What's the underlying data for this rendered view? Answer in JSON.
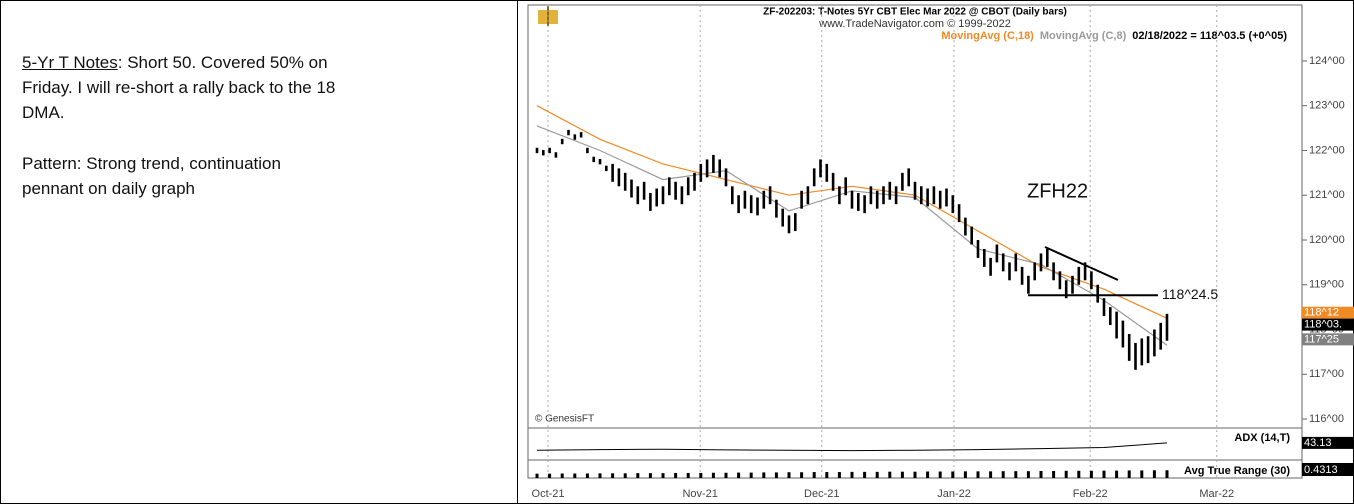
{
  "note_panel": {
    "heading": "5-Yr T Notes",
    "text": ": Short 50. Covered 50% on Friday. I will re-short a rally back to the 18 DMA.",
    "pattern": "Pattern: Strong trend, continuation pennant on daily graph"
  },
  "chart_data": {
    "type": "ohlc",
    "title": "ZF-202203: T-Notes 5Yr CBT Elec Mar 2022 @ CBOT  (Daily bars)",
    "subtitle": "www.TradeNavigator.com © 1999-2022",
    "status": "02/18/2022 = 118^03.5 (+0^05)",
    "credit": "© GenesisFT",
    "annotation": "ZFH22",
    "ylim": [
      115.8,
      125.25
    ],
    "yticks": [
      {
        "value": 124,
        "label": "124^00"
      },
      {
        "value": 123,
        "label": "123^00"
      },
      {
        "value": 122,
        "label": "122^00"
      },
      {
        "value": 121,
        "label": "121^00"
      },
      {
        "value": 120,
        "label": "120^00"
      },
      {
        "value": 119,
        "label": "119^00"
      },
      {
        "value": 118,
        "label": "118^00"
      },
      {
        "value": 117,
        "label": "117^00"
      },
      {
        "value": 116,
        "label": "116^00"
      }
    ],
    "xlim": [
      -1.43,
      121.43
    ],
    "xticks": [
      {
        "value": 1.75,
        "label": "Oct-21"
      },
      {
        "value": 25.9,
        "label": "Nov-21"
      },
      {
        "value": 45.2,
        "label": "Dec-21"
      },
      {
        "value": 66.2,
        "label": "Jan-22"
      },
      {
        "value": 87.8,
        "label": "Feb-22"
      },
      {
        "value": 107.9,
        "label": "Mar-22"
      }
    ],
    "grid": true,
    "bar_color": "#000000",
    "high": [
      122.06,
      122.01,
      122.06,
      121.96,
      122.26,
      122.46,
      122.36,
      122.41,
      122.06,
      121.86,
      121.81,
      121.66,
      121.7,
      121.6,
      121.5,
      121.35,
      121.2,
      121.3,
      121.05,
      121.15,
      121.2,
      121.4,
      121.3,
      121.2,
      121.4,
      121.5,
      121.7,
      121.8,
      121.9,
      121.8,
      121.6,
      121.2,
      121.0,
      121.1,
      121.0,
      120.95,
      121.1,
      121.2,
      120.9,
      120.7,
      120.55,
      120.6,
      121.1,
      121.2,
      121.6,
      121.8,
      121.7,
      121.5,
      121.2,
      121.4,
      121.1,
      121.05,
      121.0,
      121.2,
      121.1,
      121.2,
      121.3,
      121.2,
      121.5,
      121.6,
      121.3,
      121.2,
      121.15,
      121.2,
      121.1,
      121.15,
      121.0,
      120.8,
      120.5,
      120.3,
      120.0,
      119.8,
      119.6,
      119.9,
      119.7,
      119.5,
      119.7,
      119.4,
      119.2,
      119.5,
      119.7,
      119.8,
      119.5,
      119.3,
      119.1,
      119.2,
      119.4,
      119.5,
      119.3,
      119.0,
      118.7,
      118.5,
      118.4,
      118.2,
      117.9,
      117.7,
      117.8,
      117.85,
      118.0,
      118.15,
      118.35
    ],
    "low": [
      121.94,
      121.89,
      121.94,
      121.84,
      122.14,
      122.34,
      122.24,
      122.29,
      121.94,
      121.74,
      121.69,
      121.54,
      121.3,
      121.2,
      121.1,
      120.95,
      120.8,
      120.9,
      120.65,
      120.75,
      120.8,
      121.0,
      120.9,
      120.8,
      121.0,
      121.1,
      121.3,
      121.4,
      121.5,
      121.4,
      121.2,
      120.8,
      120.6,
      120.7,
      120.6,
      120.55,
      120.7,
      120.8,
      120.5,
      120.3,
      120.15,
      120.2,
      120.7,
      120.8,
      121.2,
      121.4,
      121.3,
      121.1,
      120.8,
      121.0,
      120.7,
      120.65,
      120.6,
      120.8,
      120.7,
      120.8,
      120.9,
      120.8,
      121.1,
      121.2,
      120.9,
      120.8,
      120.75,
      120.8,
      120.7,
      120.75,
      120.6,
      120.4,
      120.1,
      119.9,
      119.6,
      119.4,
      119.2,
      119.5,
      119.3,
      119.1,
      119.3,
      119.0,
      118.8,
      119.1,
      119.3,
      119.4,
      119.1,
      118.9,
      118.7,
      118.8,
      119.0,
      119.1,
      118.9,
      118.6,
      118.3,
      118.1,
      117.8,
      117.6,
      117.3,
      117.1,
      117.2,
      117.25,
      117.4,
      117.55,
      117.75
    ],
    "series": [
      {
        "name": "MovingAvg (C,18)",
        "color": "#f08a24",
        "x": [
          0,
          10,
          20,
          30,
          40,
          50,
          60,
          70,
          80,
          90,
          100
        ],
        "values": [
          123.0,
          122.25,
          121.7,
          121.35,
          121.0,
          121.2,
          121.0,
          120.2,
          119.4,
          118.9,
          118.25
        ]
      },
      {
        "name": "MovingAvg (C,8)",
        "color": "#9a9a9a",
        "x": [
          0,
          10,
          20,
          30,
          40,
          50,
          60,
          70,
          80,
          90,
          100
        ],
        "values": [
          122.55,
          122.0,
          121.35,
          121.55,
          120.65,
          121.1,
          120.95,
          119.8,
          119.45,
          118.65,
          117.65
        ]
      }
    ],
    "level": {
      "value": 118.766,
      "label": "118^24.5"
    },
    "price_tags": [
      {
        "value": 118.375,
        "label": "118^12",
        "color": "#f08a24"
      },
      {
        "value": 118.11,
        "label": "118^03.",
        "color": "#000000"
      },
      {
        "value": 117.78,
        "label": "117^25",
        "color": "#808080"
      }
    ],
    "adx": {
      "name": "ADX (14,T)",
      "ylim": [
        0,
        80
      ],
      "x": [
        0,
        10,
        20,
        30,
        40,
        50,
        60,
        70,
        80,
        90,
        100
      ],
      "values": [
        22,
        24,
        25,
        23,
        22,
        21,
        22,
        24,
        27,
        30,
        43.13
      ]
    },
    "atr": {
      "name": "Avg True Range (30)",
      "ylim": [
        0,
        1.0
      ],
      "x": [
        0,
        2,
        4,
        6,
        8,
        10,
        12,
        14,
        16,
        18,
        20,
        22,
        24,
        26,
        28,
        30,
        32,
        34,
        36,
        38,
        40,
        42,
        44,
        46,
        48,
        50,
        52,
        54,
        56,
        58,
        60,
        62,
        64,
        66,
        68,
        70,
        72,
        74,
        76,
        78,
        80,
        82,
        84,
        86,
        88,
        90,
        92,
        94,
        96,
        98,
        100
      ],
      "values": [
        0.24,
        0.24,
        0.25,
        0.25,
        0.25,
        0.26,
        0.26,
        0.26,
        0.27,
        0.27,
        0.27,
        0.28,
        0.28,
        0.28,
        0.29,
        0.29,
        0.3,
        0.3,
        0.31,
        0.31,
        0.32,
        0.32,
        0.33,
        0.33,
        0.33,
        0.34,
        0.34,
        0.34,
        0.35,
        0.35,
        0.35,
        0.36,
        0.36,
        0.36,
        0.37,
        0.37,
        0.37,
        0.38,
        0.38,
        0.38,
        0.39,
        0.39,
        0.4,
        0.4,
        0.4,
        0.41,
        0.41,
        0.42,
        0.42,
        0.43,
        0.4313
      ]
    }
  }
}
